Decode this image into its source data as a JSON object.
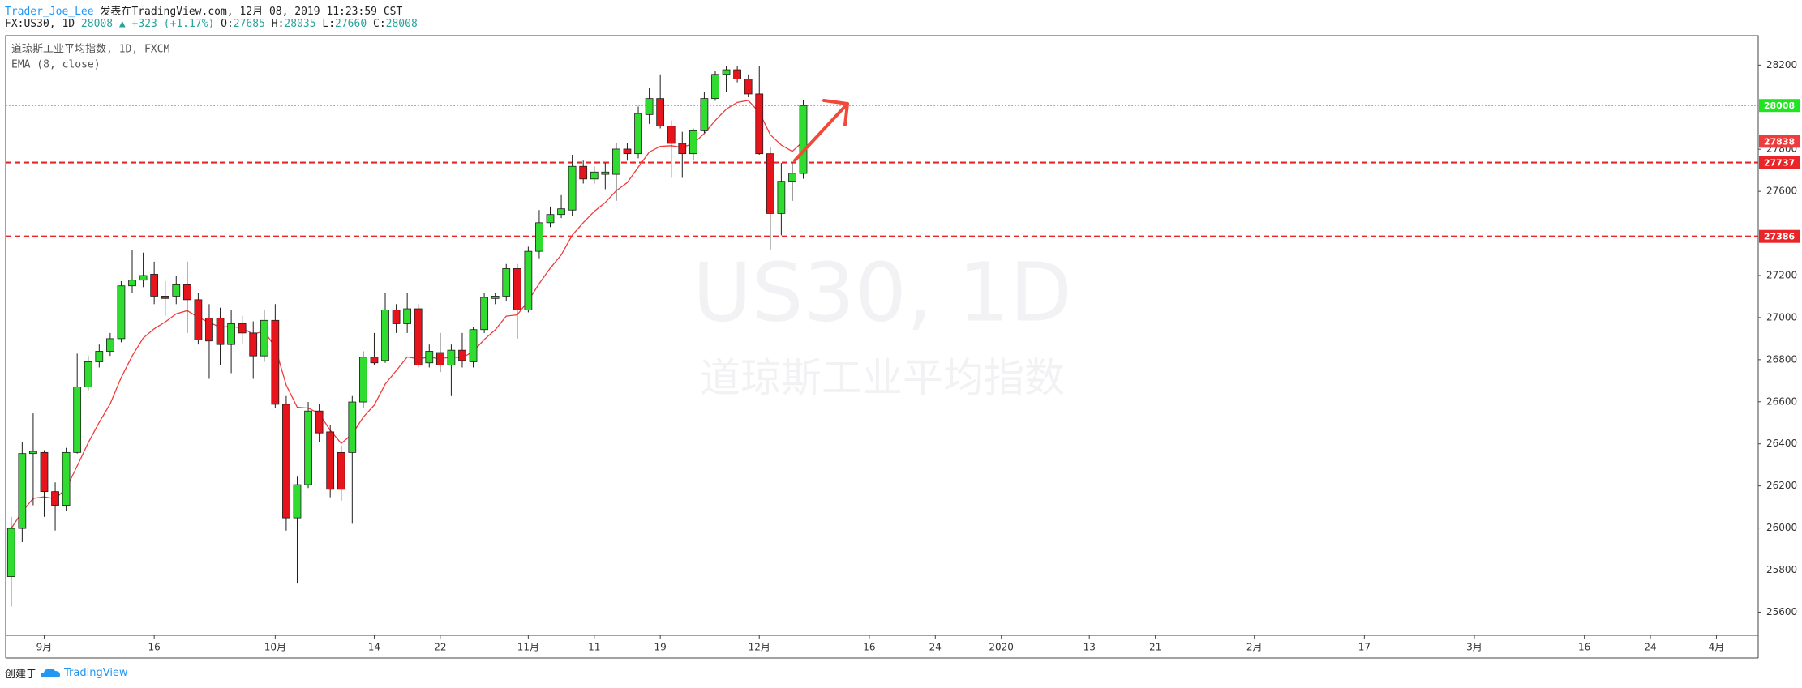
{
  "header": {
    "author": "Trader_Joe_Lee",
    "published": "发表在TradingView.com, 12月 08, 2019 11:23:59 CST",
    "symbol": "FX:US30, 1D",
    "change": "▲ +323 (+1.17%)",
    "ohlc_labels": [
      "O:",
      "H:",
      "L:",
      "C:"
    ]
  },
  "chart_data": {
    "type": "candlestick",
    "title": "道琼斯工业平均指数, 1D, FXCM",
    "watermark": [
      "US30, 1D",
      "道琼斯工业平均指数"
    ],
    "open": [
      25769,
      25998,
      26354,
      26359,
      26173,
      26108,
      26359,
      26670,
      26790,
      26840,
      26900,
      27151,
      27178,
      27206,
      27102,
      27102,
      27156,
      27085,
      26998,
      26998,
      26872,
      26971,
      26927,
      26818,
      26987,
      26588,
      26048,
      26206,
      26556,
      26457,
      26359,
      26359,
      26599,
      26812,
      26796,
      27036,
      26971,
      27042,
      26785,
      26834,
      26774,
      26845,
      26790,
      26943,
      27091,
      27102,
      27233,
      27036,
      27315,
      27451,
      27490,
      27511,
      27719,
      27659,
      27681,
      27681,
      27801,
      27779,
      27965,
      28041,
      27910,
      27828,
      27779,
      27888,
      28041,
      28156,
      28178,
      28134,
      28063,
      27779,
      27495,
      27648,
      27685
    ],
    "high": [
      26053,
      26408,
      26545,
      26370,
      26217,
      26381,
      26829,
      26818,
      26872,
      26927,
      27173,
      27320,
      27309,
      27266,
      27173,
      27200,
      27266,
      27118,
      27064,
      27047,
      27036,
      27009,
      26982,
      27036,
      27064,
      26627,
      26244,
      26599,
      26588,
      26490,
      26392,
      26627,
      26840,
      26927,
      27118,
      27064,
      27118,
      27064,
      26872,
      26927,
      26872,
      26927,
      26954,
      27118,
      27118,
      27255,
      27255,
      27337,
      27511,
      27528,
      27582,
      27774,
      27746,
      27719,
      27735,
      27828,
      27828,
      28003,
      28090,
      28156,
      27937,
      27883,
      27899,
      28074,
      28172,
      28194,
      28194,
      28156,
      28194,
      27812,
      27735,
      27735,
      28035
    ],
    "low": [
      25627,
      25933,
      26108,
      26053,
      25988,
      26080,
      26354,
      26654,
      26763,
      26818,
      26883,
      27118,
      27145,
      27064,
      27009,
      27064,
      26927,
      26872,
      26709,
      26774,
      26736,
      26872,
      26709,
      26790,
      26572,
      25988,
      25736,
      26190,
      26408,
      26146,
      26130,
      26020,
      26572,
      26774,
      26785,
      26927,
      26927,
      26763,
      26763,
      26741,
      26627,
      26763,
      26763,
      26927,
      27064,
      27080,
      26900,
      27025,
      27282,
      27430,
      27473,
      27484,
      27637,
      27637,
      27610,
      27555,
      27746,
      27757,
      27921,
      27899,
      27664,
      27664,
      27746,
      27877,
      28030,
      28074,
      28118,
      28047,
      27774,
      27320,
      27391,
      27555,
      27660
    ],
    "close": [
      25998,
      26354,
      26364,
      26173,
      26108,
      26359,
      26670,
      26790,
      26840,
      26900,
      27151,
      27178,
      27200,
      27102,
      27091,
      27156,
      27085,
      26894,
      26889,
      26872,
      26971,
      26927,
      26818,
      26987,
      26588,
      26048,
      26206,
      26556,
      26452,
      26184,
      26184,
      26599,
      26812,
      26785,
      27036,
      26971,
      27042,
      26774,
      26840,
      26774,
      26845,
      26796,
      26943,
      27096,
      27102,
      27233,
      27036,
      27315,
      27451,
      27490,
      27517,
      27719,
      27659,
      27692,
      27692,
      27801,
      27779,
      27970,
      28041,
      27910,
      27828,
      27779,
      27888,
      28041,
      28156,
      28178,
      28134,
      28063,
      27779,
      27495,
      27648,
      27686,
      28008
    ],
    "up_color": "#2fdc2f",
    "down_color": "#e8141c",
    "border_color": "#1e1e1e",
    "series": [
      {
        "name": "EMA (8, close)",
        "color": "#ef3b3b",
        "values": [
          25998,
          26077,
          26141,
          26148,
          26139,
          26188,
          26295,
          26405,
          26502,
          26590,
          26715,
          26818,
          26903,
          26947,
          26979,
          27018,
          27033,
          27002,
          26977,
          26954,
          26958,
          26951,
          26921,
          26936,
          26859,
          26679,
          26574,
          26570,
          26544,
          26464,
          26402,
          26446,
          26527,
          26584,
          26684,
          26748,
          26813,
          26804,
          26812,
          26804,
          26813,
          26809,
          26839,
          26896,
          26942,
          27007,
          27013,
          27080,
          27162,
          27235,
          27298,
          27392,
          27451,
          27505,
          27547,
          27603,
          27642,
          27715,
          27787,
          27814,
          27817,
          27809,
          27827,
          27875,
          27937,
          27991,
          28023,
          28032,
          27976,
          27869,
          27820,
          27790,
          27838
        ]
      }
    ],
    "last_price_color": "#1ee61e",
    "price_lines": [
      {
        "value": 27737,
        "color": "#e8262a"
      },
      {
        "value": 27386,
        "color": "#e8262a"
      }
    ],
    "xlim": [
      -0.5,
      158.8
    ],
    "xticks": [
      {
        "value": 3,
        "label": "9月"
      },
      {
        "value": 13,
        "label": "16"
      },
      {
        "value": 24,
        "label": "10月"
      },
      {
        "value": 33,
        "label": "14"
      },
      {
        "value": 39,
        "label": "22"
      },
      {
        "value": 47,
        "label": "11月"
      },
      {
        "value": 53,
        "label": "11"
      },
      {
        "value": 59,
        "label": "19"
      },
      {
        "value": 68,
        "label": "12月"
      },
      {
        "value": 78,
        "label": "16"
      },
      {
        "value": 84,
        "label": "24"
      },
      {
        "value": 90,
        "label": "2020"
      },
      {
        "value": 98,
        "label": "13"
      },
      {
        "value": 104,
        "label": "21"
      },
      {
        "value": 113,
        "label": "2月"
      },
      {
        "value": 123,
        "label": "17"
      },
      {
        "value": 133,
        "label": "3月"
      },
      {
        "value": 143,
        "label": "16"
      },
      {
        "value": 149,
        "label": "24"
      },
      {
        "value": 155,
        "label": "4月"
      }
    ],
    "ylim": [
      25490,
      28340
    ],
    "yticks": [
      25600,
      25800,
      26000,
      26200,
      26400,
      26600,
      26800,
      27000,
      27200,
      27600,
      27800,
      28200
    ],
    "grid": false
  },
  "footer": {
    "created": "创建于",
    "brand": "TradingView"
  }
}
